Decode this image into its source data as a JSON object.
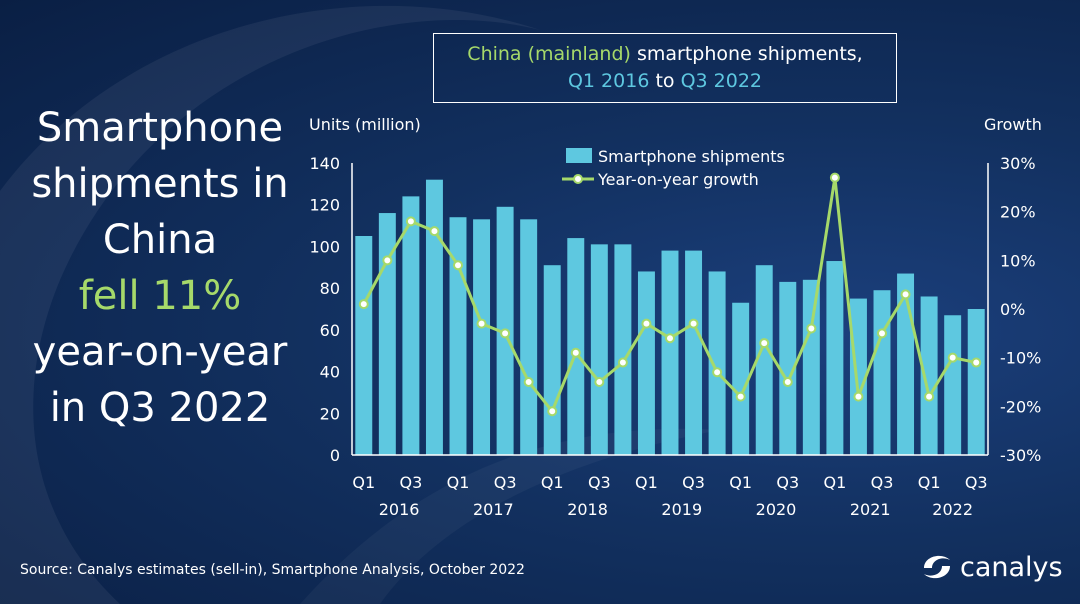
{
  "headline": {
    "line1": "Smartphone",
    "line2": "shipments in",
    "line3": "China",
    "line4": "fell 11%",
    "line5": "year-on-year",
    "line6": "in Q3 2022"
  },
  "title_box": {
    "part1": "China (mainland)",
    "part2": "smartphone shipments,",
    "part3": "Q1 2016",
    "part4": "to",
    "part5": "Q3 2022"
  },
  "source": "Source: Canalys estimates (sell-in), Smartphone Analysis, October 2022",
  "logo": {
    "text": "canalys",
    "icon": "canalys-logo-icon"
  },
  "colors": {
    "bar": "#5ec8e0",
    "line": "#a6d96a",
    "accent_text": "#a6d96a",
    "title_blue": "#5ec8e0"
  },
  "chart_data": {
    "type": "bar",
    "title": "China (mainland) smartphone shipments, Q1 2016 to Q3 2022",
    "ylabel": "Units (million)",
    "y2label": "Growth",
    "ylim": [
      0,
      140
    ],
    "y_ticks": [
      "0",
      "20",
      "40",
      "60",
      "80",
      "100",
      "120",
      "140"
    ],
    "y2lim": [
      -30,
      30
    ],
    "y2_ticks": [
      "-30%",
      "-20%",
      "-10%",
      "0%",
      "10%",
      "20%",
      "30%"
    ],
    "x_tick_labels": [
      "Q1",
      "",
      "Q3",
      "",
      "Q1",
      "",
      "Q3",
      "",
      "Q1",
      "",
      "Q3",
      "",
      "Q1",
      "",
      "Q3",
      "",
      "Q1",
      "",
      "Q3",
      "",
      "Q1",
      "",
      "Q3",
      "",
      "Q1",
      "",
      "Q3"
    ],
    "years": [
      {
        "label": "2016",
        "center_index": 1.5
      },
      {
        "label": "2017",
        "center_index": 5.5
      },
      {
        "label": "2018",
        "center_index": 9.5
      },
      {
        "label": "2019",
        "center_index": 13.5
      },
      {
        "label": "2020",
        "center_index": 17.5
      },
      {
        "label": "2021",
        "center_index": 21.5
      },
      {
        "label": "2022",
        "center_index": 25
      }
    ],
    "categories": [
      "Q1 2016",
      "Q2 2016",
      "Q3 2016",
      "Q4 2016",
      "Q1 2017",
      "Q2 2017",
      "Q3 2017",
      "Q4 2017",
      "Q1 2018",
      "Q2 2018",
      "Q3 2018",
      "Q4 2018",
      "Q1 2019",
      "Q2 2019",
      "Q3 2019",
      "Q4 2019",
      "Q1 2020",
      "Q2 2020",
      "Q3 2020",
      "Q4 2020",
      "Q1 2021",
      "Q2 2021",
      "Q3 2021",
      "Q4 2021",
      "Q1 2022",
      "Q2 2022",
      "Q3 2022"
    ],
    "series": [
      {
        "name": "Smartphone shipments",
        "type": "bar",
        "axis": "left",
        "values": [
          105,
          116,
          124,
          132,
          114,
          113,
          119,
          113,
          91,
          104,
          101,
          101,
          88,
          98,
          98,
          88,
          73,
          91,
          83,
          84,
          93,
          75,
          79,
          87,
          76,
          67,
          70
        ]
      },
      {
        "name": "Year-on-year growth",
        "type": "line",
        "axis": "right",
        "values": [
          1,
          10,
          18,
          16,
          9,
          -3,
          -5,
          -15,
          -21,
          -9,
          -15,
          -11,
          -3,
          -6,
          -3,
          -13,
          -18,
          -7,
          -15,
          -4,
          27,
          -18,
          -5,
          3,
          -18,
          -10,
          -11
        ]
      }
    ],
    "legend_position": "top",
    "grid": false
  }
}
